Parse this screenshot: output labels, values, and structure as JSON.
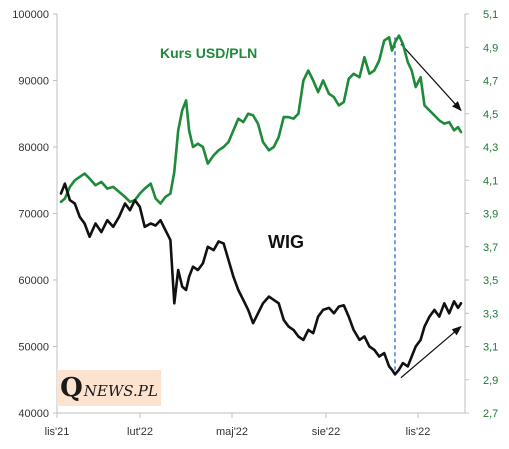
{
  "chart_data": {
    "type": "line",
    "x_ticks": [
      "lis'21",
      "lut'22",
      "maj'22",
      "sie'22",
      "lis'22"
    ],
    "y_left": {
      "ticks": [
        "40000",
        "50000",
        "60000",
        "70000",
        "80000",
        "90000",
        "100000"
      ],
      "range": [
        40000,
        100000
      ]
    },
    "y_right": {
      "ticks": [
        "2,7",
        "2,9",
        "3,1",
        "3,3",
        "3,5",
        "3,7",
        "3,9",
        "4,1",
        "4,3",
        "4,5",
        "4,7",
        "4,9",
        "5,1"
      ],
      "range": [
        2.7,
        5.1
      ]
    },
    "grid": false,
    "series": [
      {
        "name": "Kurs USD/PLN",
        "axis": "right",
        "color": "#1e8a3a",
        "points": [
          [
            "2021-11-01",
            3.97
          ],
          [
            "2021-11-05",
            3.99
          ],
          [
            "2021-11-10",
            4.06
          ],
          [
            "2021-11-15",
            4.1
          ],
          [
            "2021-11-20",
            4.12
          ],
          [
            "2021-11-25",
            4.14
          ],
          [
            "2021-11-30",
            4.11
          ],
          [
            "2021-12-06",
            4.07
          ],
          [
            "2021-12-12",
            4.09
          ],
          [
            "2021-12-18",
            4.05
          ],
          [
            "2021-12-24",
            4.06
          ],
          [
            "2021-12-30",
            4.03
          ],
          [
            "2022-01-05",
            4.0
          ],
          [
            "2022-01-10",
            3.97
          ],
          [
            "2022-01-15",
            3.98
          ],
          [
            "2022-01-20",
            4.02
          ],
          [
            "2022-01-25",
            4.05
          ],
          [
            "2022-01-31",
            4.08
          ],
          [
            "2022-02-05",
            3.99
          ],
          [
            "2022-02-10",
            3.96
          ],
          [
            "2022-02-15",
            4.0
          ],
          [
            "2022-02-20",
            4.02
          ],
          [
            "2022-02-24",
            4.15
          ],
          [
            "2022-02-28",
            4.4
          ],
          [
            "2022-03-04",
            4.52
          ],
          [
            "2022-03-08",
            4.58
          ],
          [
            "2022-03-11",
            4.4
          ],
          [
            "2022-03-15",
            4.3
          ],
          [
            "2022-03-20",
            4.32
          ],
          [
            "2022-03-25",
            4.3
          ],
          [
            "2022-03-30",
            4.2
          ],
          [
            "2022-04-05",
            4.25
          ],
          [
            "2022-04-10",
            4.28
          ],
          [
            "2022-04-15",
            4.3
          ],
          [
            "2022-04-20",
            4.33
          ],
          [
            "2022-04-25",
            4.4
          ],
          [
            "2022-04-30",
            4.47
          ],
          [
            "2022-05-05",
            4.45
          ],
          [
            "2022-05-10",
            4.5
          ],
          [
            "2022-05-15",
            4.49
          ],
          [
            "2022-05-20",
            4.44
          ],
          [
            "2022-05-25",
            4.33
          ],
          [
            "2022-05-31",
            4.28
          ],
          [
            "2022-06-05",
            4.3
          ],
          [
            "2022-06-10",
            4.36
          ],
          [
            "2022-06-15",
            4.48
          ],
          [
            "2022-06-20",
            4.48
          ],
          [
            "2022-06-25",
            4.47
          ],
          [
            "2022-06-30",
            4.5
          ],
          [
            "2022-07-05",
            4.7
          ],
          [
            "2022-07-10",
            4.76
          ],
          [
            "2022-07-15",
            4.7
          ],
          [
            "2022-07-20",
            4.63
          ],
          [
            "2022-07-25",
            4.7
          ],
          [
            "2022-07-31",
            4.62
          ],
          [
            "2022-08-05",
            4.6
          ],
          [
            "2022-08-10",
            4.55
          ],
          [
            "2022-08-15",
            4.57
          ],
          [
            "2022-08-20",
            4.71
          ],
          [
            "2022-08-25",
            4.74
          ],
          [
            "2022-08-31",
            4.72
          ],
          [
            "2022-09-05",
            4.84
          ],
          [
            "2022-09-10",
            4.74
          ],
          [
            "2022-09-15",
            4.76
          ],
          [
            "2022-09-20",
            4.82
          ],
          [
            "2022-09-25",
            4.94
          ],
          [
            "2022-09-30",
            4.96
          ],
          [
            "2022-10-03",
            4.88
          ],
          [
            "2022-10-06",
            4.93
          ],
          [
            "2022-10-10",
            4.97
          ],
          [
            "2022-10-14",
            4.92
          ],
          [
            "2022-10-19",
            4.81
          ],
          [
            "2022-10-23",
            4.76
          ],
          [
            "2022-10-27",
            4.66
          ],
          [
            "2022-11-01",
            4.72
          ],
          [
            "2022-11-05",
            4.55
          ],
          [
            "2022-11-10",
            4.52
          ],
          [
            "2022-11-15",
            4.49
          ],
          [
            "2022-11-20",
            4.46
          ],
          [
            "2022-11-25",
            4.44
          ],
          [
            "2022-11-30",
            4.45
          ],
          [
            "2022-12-05",
            4.4
          ],
          [
            "2022-12-09",
            4.42
          ],
          [
            "2022-12-12",
            4.39
          ]
        ]
      },
      {
        "name": "WIG",
        "axis": "left",
        "color": "#111111",
        "points": [
          [
            "2021-11-01",
            73000
          ],
          [
            "2021-11-05",
            74500
          ],
          [
            "2021-11-10",
            72000
          ],
          [
            "2021-11-15",
            71500
          ],
          [
            "2021-11-20",
            69500
          ],
          [
            "2021-11-25",
            68500
          ],
          [
            "2021-11-30",
            66500
          ],
          [
            "2021-12-06",
            68500
          ],
          [
            "2021-12-12",
            67200
          ],
          [
            "2021-12-18",
            69000
          ],
          [
            "2021-12-24",
            68000
          ],
          [
            "2021-12-30",
            69500
          ],
          [
            "2022-01-05",
            71500
          ],
          [
            "2022-01-10",
            70500
          ],
          [
            "2022-01-15",
            72000
          ],
          [
            "2022-01-20",
            71000
          ],
          [
            "2022-01-25",
            68000
          ],
          [
            "2022-01-31",
            68500
          ],
          [
            "2022-02-05",
            68200
          ],
          [
            "2022-02-10",
            69000
          ],
          [
            "2022-02-15",
            67500
          ],
          [
            "2022-02-20",
            66000
          ],
          [
            "2022-02-24",
            56500
          ],
          [
            "2022-02-28",
            61500
          ],
          [
            "2022-03-04",
            59000
          ],
          [
            "2022-03-08",
            58500
          ],
          [
            "2022-03-11",
            60500
          ],
          [
            "2022-03-15",
            62000
          ],
          [
            "2022-03-20",
            61500
          ],
          [
            "2022-03-25",
            62500
          ],
          [
            "2022-03-30",
            65000
          ],
          [
            "2022-04-05",
            64500
          ],
          [
            "2022-04-10",
            65800
          ],
          [
            "2022-04-15",
            65500
          ],
          [
            "2022-04-20",
            63000
          ],
          [
            "2022-04-25",
            60500
          ],
          [
            "2022-04-30",
            58500
          ],
          [
            "2022-05-05",
            57000
          ],
          [
            "2022-05-10",
            55500
          ],
          [
            "2022-05-15",
            53500
          ],
          [
            "2022-05-20",
            55000
          ],
          [
            "2022-05-25",
            56500
          ],
          [
            "2022-05-31",
            57500
          ],
          [
            "2022-06-05",
            57000
          ],
          [
            "2022-06-10",
            56500
          ],
          [
            "2022-06-15",
            54000
          ],
          [
            "2022-06-20",
            53000
          ],
          [
            "2022-06-25",
            52500
          ],
          [
            "2022-06-30",
            51500
          ],
          [
            "2022-07-05",
            51000
          ],
          [
            "2022-07-10",
            52500
          ],
          [
            "2022-07-15",
            52000
          ],
          [
            "2022-07-20",
            54500
          ],
          [
            "2022-07-25",
            55500
          ],
          [
            "2022-07-31",
            55800
          ],
          [
            "2022-08-05",
            55000
          ],
          [
            "2022-08-10",
            56000
          ],
          [
            "2022-08-15",
            56200
          ],
          [
            "2022-08-20",
            54500
          ],
          [
            "2022-08-25",
            52500
          ],
          [
            "2022-08-31",
            51000
          ],
          [
            "2022-09-05",
            51500
          ],
          [
            "2022-09-10",
            50000
          ],
          [
            "2022-09-15",
            49500
          ],
          [
            "2022-09-20",
            48500
          ],
          [
            "2022-09-25",
            49000
          ],
          [
            "2022-09-30",
            47000
          ],
          [
            "2022-10-03",
            46500
          ],
          [
            "2022-10-06",
            45800
          ],
          [
            "2022-10-10",
            46500
          ],
          [
            "2022-10-14",
            47500
          ],
          [
            "2022-10-19",
            47000
          ],
          [
            "2022-10-23",
            48500
          ],
          [
            "2022-10-27",
            50000
          ],
          [
            "2022-11-01",
            51000
          ],
          [
            "2022-11-05",
            53000
          ],
          [
            "2022-11-10",
            54500
          ],
          [
            "2022-11-15",
            55500
          ],
          [
            "2022-11-20",
            54500
          ],
          [
            "2022-11-25",
            56500
          ],
          [
            "2022-11-30",
            55000
          ],
          [
            "2022-12-05",
            56800
          ],
          [
            "2022-12-09",
            55800
          ],
          [
            "2022-12-12",
            56500
          ]
        ]
      }
    ],
    "annotations": [
      {
        "type": "dashed-line",
        "date": "2022-10-06",
        "y_top": 4.96,
        "y_top_axis": "right",
        "y_bottom": 45800,
        "y_bottom_axis": "left",
        "color": "#3366cc"
      },
      {
        "type": "arrow",
        "from_date": "2022-10-12",
        "from_value": 4.92,
        "to_date": "2022-12-12",
        "to_value": 4.52,
        "axis": "right",
        "color": "#111111"
      },
      {
        "type": "arrow",
        "from_date": "2022-10-12",
        "from_value": 45300,
        "to_date": "2022-12-12",
        "to_value": 53000,
        "axis": "left",
        "color": "#111111"
      }
    ]
  },
  "logo": {
    "q": "Q",
    "rest": "NEWS.PL"
  }
}
